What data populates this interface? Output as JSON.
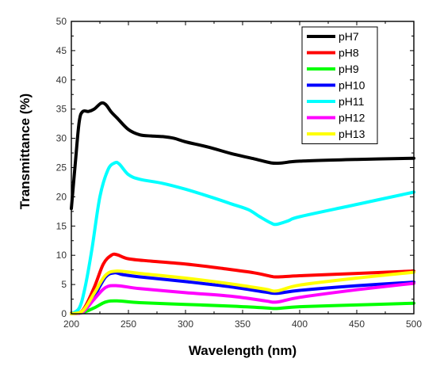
{
  "chart_data": {
    "type": "line",
    "xlabel": "Wavelength (nm)",
    "ylabel": "Transmittance (%)",
    "xlim": [
      200,
      500
    ],
    "ylim": [
      0,
      50
    ],
    "xticks": [
      200,
      250,
      300,
      350,
      400,
      450,
      500
    ],
    "yticks": [
      0,
      5,
      10,
      15,
      20,
      25,
      30,
      35,
      40,
      45,
      50
    ],
    "grid": false,
    "legend_position": "top-right",
    "series": [
      {
        "name": "pH7",
        "color": "#000000",
        "points": [
          [
            200,
            18
          ],
          [
            204,
            27
          ],
          [
            207,
            33
          ],
          [
            210,
            34.6
          ],
          [
            215,
            34.6
          ],
          [
            220,
            35
          ],
          [
            226,
            36
          ],
          [
            230,
            35.8
          ],
          [
            235,
            34.5
          ],
          [
            240,
            33.5
          ],
          [
            250,
            31.5
          ],
          [
            260,
            30.6
          ],
          [
            270,
            30.4
          ],
          [
            280,
            30.3
          ],
          [
            290,
            30
          ],
          [
            300,
            29.4
          ],
          [
            320,
            28.5
          ],
          [
            340,
            27.4
          ],
          [
            360,
            26.5
          ],
          [
            375,
            25.8
          ],
          [
            385,
            25.8
          ],
          [
            400,
            26.1
          ],
          [
            450,
            26.4
          ],
          [
            500,
            26.6
          ]
        ]
      },
      {
        "name": "pH8",
        "color": "#ff0000",
        "points": [
          [
            200,
            0.1
          ],
          [
            210,
            0.6
          ],
          [
            220,
            4.5
          ],
          [
            228,
            8.5
          ],
          [
            235,
            10
          ],
          [
            240,
            10.1
          ],
          [
            250,
            9.4
          ],
          [
            270,
            9
          ],
          [
            300,
            8.5
          ],
          [
            330,
            7.8
          ],
          [
            360,
            7
          ],
          [
            375,
            6.4
          ],
          [
            380,
            6.3
          ],
          [
            400,
            6.5
          ],
          [
            450,
            6.9
          ],
          [
            500,
            7.3
          ]
        ]
      },
      {
        "name": "pH9",
        "color": "#00ff00",
        "points": [
          [
            200,
            0
          ],
          [
            210,
            0.2
          ],
          [
            220,
            1
          ],
          [
            230,
            2
          ],
          [
            240,
            2.2
          ],
          [
            260,
            1.9
          ],
          [
            300,
            1.6
          ],
          [
            340,
            1.3
          ],
          [
            370,
            1
          ],
          [
            380,
            0.9
          ],
          [
            400,
            1.2
          ],
          [
            450,
            1.5
          ],
          [
            500,
            1.8
          ]
        ]
      },
      {
        "name": "pH10",
        "color": "#0000ff",
        "points": [
          [
            200,
            0
          ],
          [
            210,
            0.4
          ],
          [
            220,
            3
          ],
          [
            230,
            6.3
          ],
          [
            238,
            7
          ],
          [
            245,
            6.7
          ],
          [
            260,
            6.3
          ],
          [
            300,
            5.5
          ],
          [
            340,
            4.6
          ],
          [
            370,
            3.7
          ],
          [
            380,
            3.5
          ],
          [
            400,
            4
          ],
          [
            450,
            4.8
          ],
          [
            500,
            5.4
          ]
        ]
      },
      {
        "name": "pH11",
        "color": "#00ffff",
        "points": [
          [
            200,
            0
          ],
          [
            207,
            1
          ],
          [
            212,
            4.5
          ],
          [
            218,
            11
          ],
          [
            225,
            20
          ],
          [
            232,
            24.6
          ],
          [
            238,
            25.8
          ],
          [
            242,
            25.6
          ],
          [
            250,
            23.8
          ],
          [
            260,
            23
          ],
          [
            280,
            22.3
          ],
          [
            300,
            21.3
          ],
          [
            320,
            20.1
          ],
          [
            340,
            18.8
          ],
          [
            355,
            17.8
          ],
          [
            365,
            16.6
          ],
          [
            375,
            15.5
          ],
          [
            380,
            15.3
          ],
          [
            390,
            15.9
          ],
          [
            400,
            16.6
          ],
          [
            450,
            18.7
          ],
          [
            500,
            20.8
          ]
        ]
      },
      {
        "name": "pH12",
        "color": "#ff00ff",
        "points": [
          [
            200,
            0
          ],
          [
            210,
            0.3
          ],
          [
            220,
            2.5
          ],
          [
            230,
            4.5
          ],
          [
            240,
            4.8
          ],
          [
            260,
            4.3
          ],
          [
            300,
            3.6
          ],
          [
            340,
            3
          ],
          [
            370,
            2.2
          ],
          [
            380,
            2
          ],
          [
            400,
            2.8
          ],
          [
            450,
            4.1
          ],
          [
            500,
            5.2
          ]
        ]
      },
      {
        "name": "pH13",
        "color": "#ffff00",
        "points": [
          [
            200,
            0
          ],
          [
            210,
            0.5
          ],
          [
            220,
            3.5
          ],
          [
            230,
            6.6
          ],
          [
            240,
            7.3
          ],
          [
            260,
            6.9
          ],
          [
            300,
            6.1
          ],
          [
            340,
            5.1
          ],
          [
            370,
            4.2
          ],
          [
            380,
            3.9
          ],
          [
            400,
            4.9
          ],
          [
            450,
            6.1
          ],
          [
            500,
            7.1
          ]
        ]
      }
    ]
  }
}
